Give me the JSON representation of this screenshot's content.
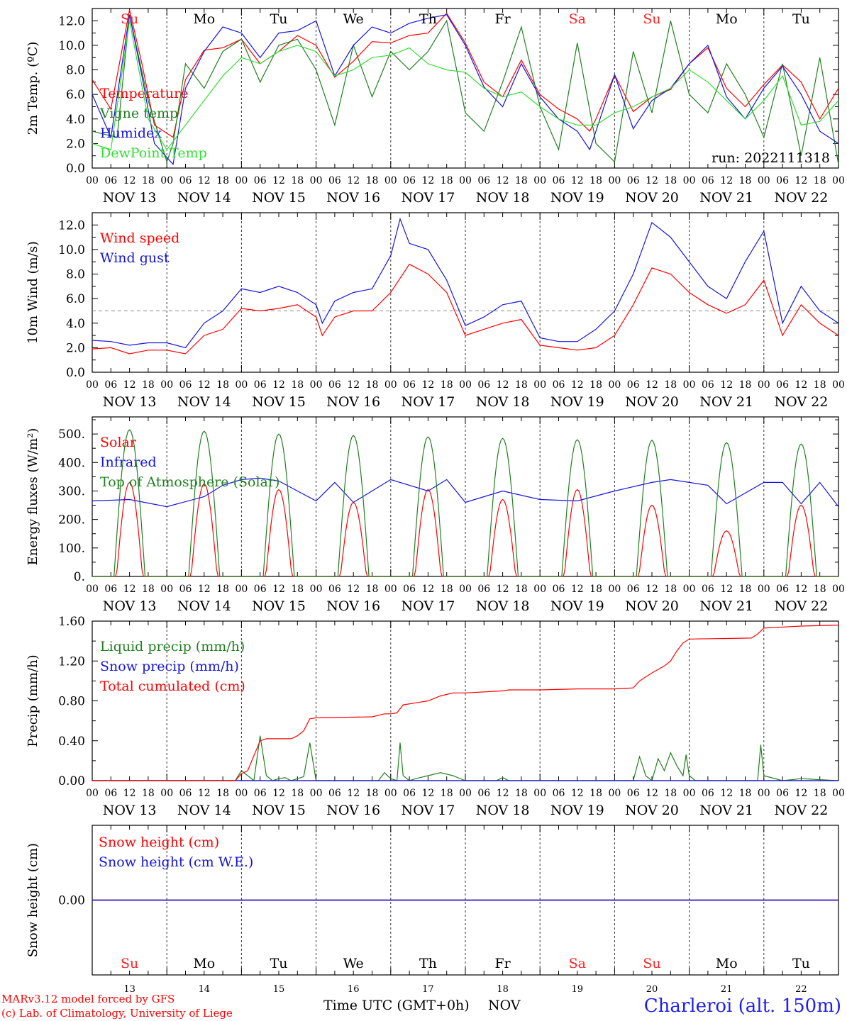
{
  "run_label": "run: 2022111318",
  "station": "Charleroi (alt. 150m)",
  "credits": [
    "MARv3.12 model forced by GFS",
    "(c) Lab. of Climatology, University of Liege"
  ],
  "x_axis_title": "Time UTC (GMT+0h)",
  "month_label": "NOV",
  "days": [
    "NOV 13",
    "NOV 14",
    "NOV 15",
    "NOV 16",
    "NOV 17",
    "NOV 18",
    "NOV 19",
    "NOV 20",
    "NOV 21",
    "NOV 22"
  ],
  "day_numbers": [
    "13",
    "14",
    "15",
    "16",
    "17",
    "18",
    "19",
    "20",
    "21",
    "22"
  ],
  "weekdays": [
    {
      "label": "Su",
      "color": "#ff2020"
    },
    {
      "label": "Mo",
      "color": "#000000"
    },
    {
      "label": "Tu",
      "color": "#000000"
    },
    {
      "label": "We",
      "color": "#000000"
    },
    {
      "label": "Th",
      "color": "#000000"
    },
    {
      "label": "Fr",
      "color": "#000000"
    },
    {
      "label": "Sa",
      "color": "#ff2020"
    },
    {
      "label": "Su",
      "color": "#ff2020"
    },
    {
      "label": "Mo",
      "color": "#000000"
    },
    {
      "label": "Tu",
      "color": "#000000"
    }
  ],
  "hour_ticks": [
    "00",
    "06",
    "12",
    "18"
  ],
  "chart_data": [
    {
      "type": "line",
      "ylabel": "2m Temp. (ºC)",
      "ylim": [
        0,
        13
      ],
      "yticks": [
        "0.0",
        "2.0",
        "4.0",
        "6.0",
        "8.0",
        "10.0",
        "12.0"
      ],
      "x_unit": "hours since NOV 13 00 UTC",
      "series": [
        {
          "name": "Temperature",
          "color": "#ff0000",
          "x": [
            0,
            6,
            12,
            16,
            20,
            26,
            30,
            36,
            42,
            48,
            54,
            60,
            66,
            72,
            78,
            84,
            90,
            96,
            102,
            108,
            114,
            120,
            126,
            132,
            138,
            144,
            150,
            156,
            160,
            162,
            168,
            174,
            180,
            186,
            192,
            198,
            204,
            210,
            216,
            222,
            228,
            234,
            240
          ],
          "y": [
            7.2,
            4.8,
            12.9,
            8.5,
            3.5,
            2.5,
            7.2,
            9.6,
            9.8,
            10.5,
            8.5,
            9.5,
            10.8,
            10.0,
            7.4,
            8.7,
            10.3,
            10.2,
            10.8,
            11.0,
            12.6,
            10.2,
            7.0,
            5.8,
            8.8,
            6.0,
            4.8,
            4.0,
            3.0,
            4.0,
            7.6,
            4.6,
            5.8,
            6.4,
            8.5,
            9.8,
            6.5,
            5.0,
            6.8,
            8.4,
            7.0,
            4.0,
            6.5
          ]
        },
        {
          "name": "Vigne temp",
          "color": "#208020",
          "x": [
            0,
            8,
            12,
            18,
            24,
            26,
            30,
            36,
            42,
            48,
            54,
            60,
            66,
            72,
            78,
            84,
            90,
            96,
            102,
            108,
            114,
            120,
            126,
            132,
            138,
            144,
            150,
            156,
            162,
            168,
            174,
            180,
            186,
            192,
            198,
            204,
            210,
            216,
            222,
            228,
            234,
            240
          ],
          "y": [
            3.0,
            2.5,
            12.5,
            5.5,
            0.5,
            2.0,
            8.5,
            6.5,
            9.5,
            10.5,
            7.0,
            10.0,
            10.5,
            8.0,
            3.5,
            10.0,
            5.8,
            9.5,
            8.0,
            9.5,
            12.0,
            4.5,
            3.0,
            7.0,
            11.5,
            5.0,
            1.5,
            10.2,
            2.0,
            0.5,
            9.5,
            4.5,
            12.0,
            6.0,
            4.5,
            8.5,
            6.0,
            2.5,
            8.5,
            1.0,
            9.0,
            0.3
          ]
        },
        {
          "name": "Humidex",
          "color": "#1515e0",
          "x": [
            0,
            6,
            12,
            16,
            20,
            26,
            30,
            36,
            42,
            48,
            54,
            60,
            66,
            72,
            78,
            84,
            90,
            96,
            102,
            108,
            114,
            120,
            126,
            132,
            138,
            144,
            150,
            156,
            160,
            162,
            168,
            174,
            180,
            186,
            192,
            198,
            204,
            210,
            216,
            222,
            228,
            234,
            240
          ],
          "y": [
            6.0,
            2.5,
            12.5,
            7.5,
            2.0,
            0.3,
            6.5,
            9.5,
            11.5,
            11.0,
            9.0,
            11.0,
            11.2,
            12.0,
            7.5,
            10.0,
            11.5,
            11.0,
            11.8,
            12.2,
            12.5,
            10.0,
            6.6,
            5.0,
            8.5,
            5.8,
            4.0,
            3.0,
            1.5,
            3.0,
            7.6,
            3.2,
            5.5,
            6.5,
            8.5,
            10.0,
            5.8,
            4.0,
            6.5,
            8.3,
            6.0,
            3.0,
            2.0
          ]
        },
        {
          "name": "DewPoint Temp",
          "color": "#33dd33",
          "x": [
            0,
            6,
            12,
            18,
            24,
            30,
            36,
            42,
            48,
            54,
            60,
            66,
            72,
            78,
            84,
            90,
            96,
            102,
            108,
            114,
            120,
            126,
            132,
            138,
            144,
            150,
            156,
            162,
            168,
            174,
            180,
            186,
            192,
            198,
            204,
            210,
            216,
            222,
            228,
            234,
            240
          ],
          "y": [
            2.0,
            1.5,
            12.0,
            4.0,
            1.5,
            3.5,
            5.5,
            7.5,
            9.0,
            8.5,
            9.5,
            10.0,
            9.5,
            7.5,
            8.0,
            9.0,
            9.2,
            9.8,
            8.5,
            8.0,
            7.8,
            6.5,
            5.8,
            6.2,
            5.0,
            4.0,
            3.5,
            3.5,
            4.5,
            5.0,
            5.8,
            6.5,
            8.0,
            7.0,
            5.5,
            4.0,
            5.5,
            7.5,
            3.5,
            3.8,
            5.5
          ]
        }
      ],
      "annotations": [
        "run: 2022111318"
      ]
    },
    {
      "type": "line",
      "ylabel": "10m Wind (m/s)",
      "ylim": [
        0,
        13
      ],
      "yticks": [
        "0.0",
        "2.0",
        "4.0",
        "6.0",
        "8.0",
        "10.0",
        "12.0"
      ],
      "reference_line": 5.0,
      "series": [
        {
          "name": "Wind speed",
          "color": "#ff0000",
          "x": [
            0,
            6,
            12,
            18,
            24,
            30,
            36,
            42,
            48,
            54,
            60,
            66,
            72,
            74,
            78,
            84,
            90,
            96,
            102,
            108,
            114,
            120,
            126,
            132,
            138,
            144,
            150,
            156,
            162,
            168,
            174,
            180,
            186,
            192,
            198,
            204,
            210,
            216,
            222,
            228,
            234,
            240
          ],
          "y": [
            1.9,
            2.0,
            1.5,
            1.8,
            1.8,
            1.5,
            3.0,
            3.5,
            5.2,
            5.0,
            5.2,
            5.5,
            4.5,
            3.0,
            4.5,
            5.0,
            5.0,
            6.5,
            8.8,
            8.0,
            6.5,
            3.0,
            3.5,
            4.0,
            4.3,
            2.2,
            2.0,
            1.8,
            2.0,
            3.0,
            5.5,
            8.5,
            8.0,
            6.5,
            5.5,
            4.8,
            5.5,
            7.5,
            3.0,
            5.5,
            4.0,
            3.0
          ]
        },
        {
          "name": "Wind gust",
          "color": "#1515e0",
          "x": [
            0,
            6,
            12,
            18,
            24,
            30,
            36,
            42,
            48,
            54,
            60,
            66,
            72,
            74,
            78,
            84,
            90,
            96,
            99,
            102,
            108,
            114,
            120,
            126,
            132,
            138,
            144,
            150,
            156,
            162,
            168,
            174,
            180,
            186,
            192,
            198,
            204,
            210,
            216,
            222,
            228,
            234,
            240
          ],
          "y": [
            2.6,
            2.5,
            2.2,
            2.4,
            2.4,
            2.0,
            4.0,
            5.0,
            6.8,
            6.5,
            7.0,
            6.5,
            5.5,
            4.0,
            5.8,
            6.5,
            6.8,
            9.5,
            12.5,
            10.5,
            10.0,
            7.5,
            3.8,
            4.5,
            5.5,
            5.8,
            2.8,
            2.5,
            2.5,
            3.5,
            5.0,
            8.0,
            12.2,
            11.0,
            9.0,
            7.0,
            6.0,
            9.0,
            11.5,
            4.0,
            7.0,
            5.0,
            4.0
          ]
        }
      ]
    },
    {
      "type": "line",
      "ylabel": "Energy fluxes (W/m²)",
      "ylim": [
        0,
        560
      ],
      "yticks": [
        "0.",
        "100.",
        "200.",
        "300.",
        "400.",
        "500."
      ],
      "series": [
        {
          "name": "Solar",
          "color": "#ff0000",
          "daily_peak": [
            330,
            325,
            305,
            260,
            305,
            270,
            305,
            250,
            160,
            250
          ]
        },
        {
          "name": "Infrared",
          "color": "#1515e0",
          "x": [
            0,
            12,
            24,
            36,
            42,
            48,
            54,
            60,
            72,
            78,
            84,
            96,
            108,
            114,
            120,
            132,
            144,
            156,
            168,
            180,
            186,
            192,
            198,
            204,
            216,
            222,
            228,
            234,
            240
          ],
          "y": [
            265,
            270,
            245,
            280,
            320,
            340,
            345,
            335,
            265,
            330,
            260,
            340,
            300,
            340,
            260,
            300,
            270,
            265,
            300,
            330,
            340,
            330,
            320,
            255,
            330,
            330,
            255,
            330,
            245
          ]
        },
        {
          "name": "Top of Atmosphere (Solar)",
          "color": "#208020",
          "daily_peak": [
            515,
            510,
            500,
            495,
            490,
            485,
            480,
            478,
            470,
            465
          ]
        }
      ]
    },
    {
      "type": "line",
      "ylabel": "Precip (mm/h)",
      "ylim": [
        0,
        1.6
      ],
      "yticks": [
        "0.00",
        "0.40",
        "0.80",
        "1.20",
        "1.60"
      ],
      "series": [
        {
          "name": "Liquid precip (mm/h)",
          "color": "#208020",
          "x": [
            0,
            46,
            48,
            50,
            52,
            54,
            56,
            58,
            60,
            62,
            64,
            66,
            68,
            70,
            72,
            74,
            92,
            94,
            96,
            98,
            99,
            100,
            102,
            104,
            108,
            112,
            116,
            120,
            130,
            132,
            134,
            174,
            176,
            177,
            178,
            180,
            182,
            184,
            186,
            188,
            190,
            191,
            192,
            194,
            214,
            215,
            216,
            222,
            228,
            240
          ],
          "y": [
            0,
            0,
            0.1,
            0.05,
            0.0,
            0.45,
            0.05,
            0.0,
            0.02,
            0.03,
            0.0,
            0.02,
            0.04,
            0.38,
            0.0,
            0.0,
            0.0,
            0.08,
            0.02,
            0.0,
            0.38,
            0.05,
            0.0,
            0.02,
            0.05,
            0.08,
            0.05,
            0.0,
            0.0,
            0.03,
            0.0,
            0.0,
            0.24,
            0.15,
            0.05,
            0.0,
            0.22,
            0.1,
            0.28,
            0.15,
            0.05,
            0.26,
            0.05,
            0.0,
            0.0,
            0.36,
            0.05,
            0.0,
            0.02,
            0.0
          ]
        },
        {
          "name": "Snow precip (mm/h)",
          "color": "#1515e0",
          "x": [
            0,
            240
          ],
          "y": [
            0,
            0
          ]
        },
        {
          "name": "Total cumulated (cm)",
          "color": "#ff0000",
          "x": [
            0,
            46,
            48,
            50,
            52,
            54,
            56,
            64,
            66,
            68,
            70,
            72,
            90,
            94,
            96,
            98,
            100,
            104,
            108,
            112,
            116,
            120,
            132,
            134,
            144,
            156,
            168,
            174,
            176,
            180,
            184,
            186,
            188,
            190,
            192,
            212,
            214,
            216,
            228,
            240
          ],
          "y": [
            0,
            0,
            0.07,
            0.1,
            0.25,
            0.4,
            0.42,
            0.42,
            0.45,
            0.5,
            0.62,
            0.63,
            0.64,
            0.67,
            0.67,
            0.68,
            0.76,
            0.78,
            0.8,
            0.85,
            0.88,
            0.88,
            0.9,
            0.91,
            0.91,
            0.92,
            0.92,
            0.93,
            1.0,
            1.08,
            1.15,
            1.2,
            1.3,
            1.38,
            1.42,
            1.43,
            1.47,
            1.53,
            1.55,
            1.56
          ]
        }
      ]
    },
    {
      "type": "line",
      "ylabel": "Snow height (cm)",
      "yticks": [
        "0.00"
      ],
      "series": [
        {
          "name": "Snow height (cm)",
          "color": "#ff0000",
          "x": [
            0,
            240
          ],
          "y": [
            0,
            0
          ]
        },
        {
          "name": "Snow height (cm W.E.)",
          "color": "#1515e0",
          "x": [
            0,
            240
          ],
          "y": [
            0,
            0
          ]
        }
      ]
    }
  ]
}
